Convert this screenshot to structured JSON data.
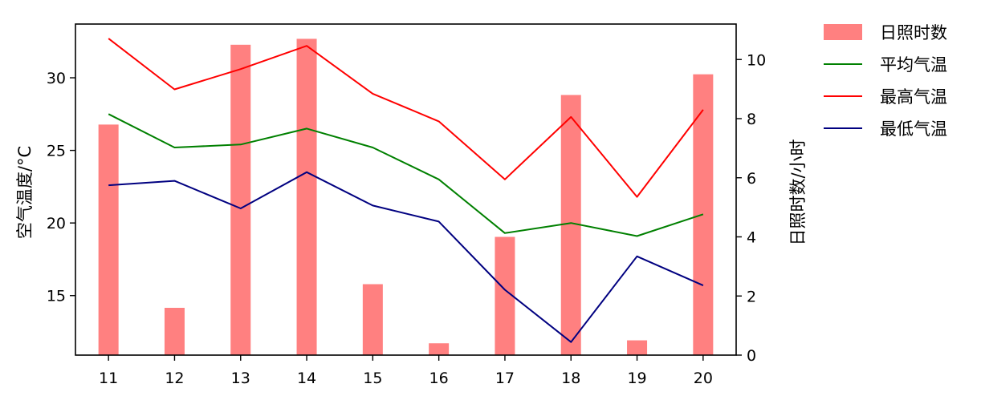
{
  "chart_data": {
    "type": "bar+line",
    "categories": [
      "11",
      "12",
      "13",
      "14",
      "15",
      "16",
      "17",
      "18",
      "19",
      "20"
    ],
    "bars": {
      "name": "日照时数",
      "color": "#ff8080",
      "axis": "right",
      "values": [
        7.8,
        1.6,
        10.5,
        10.7,
        2.4,
        0.4,
        4.0,
        8.8,
        0.5,
        9.5
      ]
    },
    "series": [
      {
        "name": "平均气温",
        "color": "#008000",
        "axis": "left",
        "values": [
          27.5,
          25.2,
          25.4,
          26.5,
          25.2,
          23.0,
          19.3,
          20.0,
          19.1,
          20.6
        ]
      },
      {
        "name": "最高气温",
        "color": "#ff0000",
        "axis": "left",
        "values": [
          32.7,
          29.2,
          30.6,
          32.2,
          28.9,
          27.0,
          23.0,
          27.3,
          21.8,
          27.8
        ]
      },
      {
        "name": "最低气温",
        "color": "#000080",
        "axis": "left",
        "values": [
          22.6,
          22.9,
          21.0,
          23.5,
          21.2,
          20.1,
          15.4,
          11.8,
          17.7,
          15.7
        ]
      }
    ],
    "ylabel_left": "空气温度/°C",
    "ylabel_right": "日照时数/小时",
    "ylim_left": [
      10.9,
      33.7
    ],
    "ylim_right": [
      0,
      11.2
    ],
    "yticks_left": [
      "15",
      "20",
      "25",
      "30"
    ],
    "yticks_right": [
      "0",
      "2",
      "4",
      "6",
      "8",
      "10"
    ],
    "legend_position": "outside-top-right",
    "grid": false
  }
}
